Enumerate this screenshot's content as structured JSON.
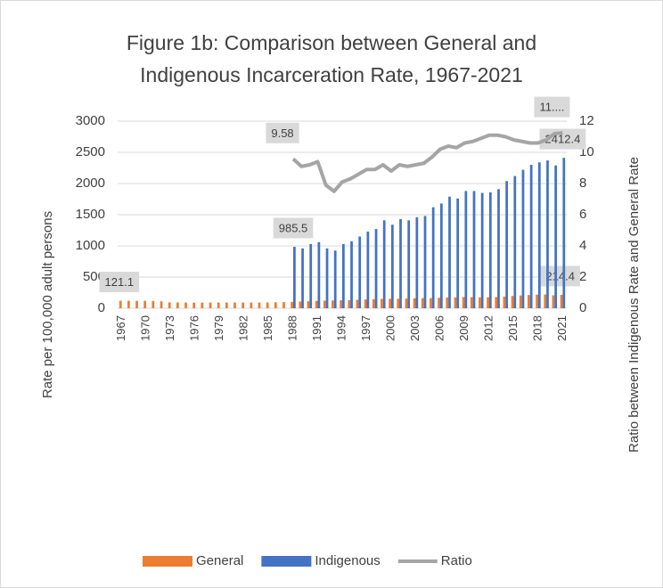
{
  "chart_data": {
    "type": "bar",
    "title": "Figure 1b: Comparison between General and Indigenous Incarceration Rate, 1967-2021",
    "ylabel": "Rate per 100,000 adult persons",
    "y2label": "Ratio between Indigenous Rate and General Rate",
    "categories": [
      "1967",
      null,
      null,
      "1970",
      null,
      null,
      "1973",
      null,
      null,
      "1976",
      null,
      null,
      "1979",
      null,
      null,
      "1982",
      null,
      null,
      "1985",
      null,
      null,
      "1988",
      null,
      null,
      "1991",
      null,
      null,
      "1994",
      null,
      null,
      "1997",
      null,
      null,
      "2000",
      null,
      null,
      "2003",
      null,
      null,
      "2006",
      null,
      null,
      "2009",
      null,
      null,
      "2012",
      null,
      null,
      "2015",
      null,
      null,
      "2018",
      null,
      null,
      "2021"
    ],
    "series": [
      {
        "name": "General",
        "type": "bar",
        "color": "#ed7d31",
        "values": [
          121.1,
          120,
          118,
          119,
          117,
          112,
          95,
          93,
          92,
          90,
          90,
          91,
          92,
          92,
          92,
          92,
          91,
          92,
          93,
          96,
          99,
          102,
          107,
          112,
          118,
          122,
          125,
          127,
          130,
          135,
          140,
          145,
          150,
          152,
          152,
          155,
          160,
          162,
          163,
          168,
          172,
          175,
          180,
          178,
          175,
          175,
          180,
          188,
          197,
          205,
          212,
          218,
          220,
          208,
          214.4
        ],
        "value_labels": [
          "121.1",
          null,
          null,
          null,
          null,
          null,
          null,
          null,
          null,
          null,
          null,
          null,
          null,
          null,
          null,
          null,
          null,
          null,
          null,
          null,
          null,
          null,
          null,
          null,
          null,
          null,
          null,
          null,
          null,
          null,
          null,
          null,
          null,
          null,
          null,
          null,
          null,
          null,
          null,
          null,
          null,
          null,
          null,
          null,
          null,
          null,
          null,
          null,
          null,
          null,
          null,
          null,
          null,
          null,
          "214.4"
        ]
      },
      {
        "name": "Indigenous",
        "type": "bar",
        "color": "#4472c4",
        "values": [
          null,
          null,
          null,
          null,
          null,
          null,
          null,
          null,
          null,
          null,
          null,
          null,
          null,
          null,
          null,
          null,
          null,
          null,
          null,
          null,
          null,
          985.5,
          960,
          1030,
          1060,
          960,
          925,
          1030,
          1075,
          1150,
          1230,
          1270,
          1410,
          1340,
          1430,
          1410,
          1460,
          1480,
          1620,
          1680,
          1790,
          1760,
          1880,
          1880,
          1850,
          1860,
          1910,
          2040,
          2120,
          2220,
          2300,
          2340,
          2370,
          2290,
          2412.4
        ],
        "value_labels": [
          null,
          null,
          null,
          null,
          null,
          null,
          null,
          null,
          null,
          null,
          null,
          null,
          null,
          null,
          null,
          null,
          null,
          null,
          null,
          null,
          null,
          "985.5",
          null,
          null,
          null,
          null,
          null,
          null,
          null,
          null,
          null,
          null,
          null,
          null,
          null,
          null,
          null,
          null,
          null,
          null,
          null,
          null,
          null,
          null,
          null,
          null,
          null,
          null,
          null,
          null,
          null,
          null,
          null,
          null,
          "2412.4"
        ]
      },
      {
        "name": "Ratio",
        "type": "line",
        "axis": "y2",
        "color": "#a5a5a5",
        "values": [
          null,
          null,
          null,
          null,
          null,
          null,
          null,
          null,
          null,
          null,
          null,
          null,
          null,
          null,
          null,
          null,
          null,
          null,
          null,
          null,
          null,
          9.58,
          9.1,
          9.2,
          9.4,
          7.9,
          7.5,
          8.1,
          8.3,
          8.6,
          8.9,
          8.9,
          9.2,
          8.8,
          9.2,
          9.1,
          9.2,
          9.3,
          9.7,
          10.2,
          10.4,
          10.3,
          10.6,
          10.7,
          10.9,
          11.1,
          11.1,
          11.0,
          10.8,
          10.7,
          10.6,
          10.6,
          10.8,
          11.2,
          11.25
        ],
        "value_labels": [
          null,
          null,
          null,
          null,
          null,
          null,
          null,
          null,
          null,
          null,
          null,
          null,
          null,
          null,
          null,
          null,
          null,
          null,
          null,
          null,
          null,
          "9.58",
          null,
          null,
          null,
          null,
          null,
          null,
          null,
          null,
          null,
          null,
          null,
          null,
          null,
          null,
          null,
          null,
          null,
          null,
          null,
          null,
          null,
          null,
          null,
          null,
          null,
          null,
          null,
          null,
          null,
          null,
          null,
          null,
          "11...."
        ]
      }
    ],
    "ylim": [
      0,
      3000
    ],
    "yticks": [
      0,
      500,
      1000,
      1500,
      2000,
      2500,
      3000
    ],
    "y2lim": [
      0,
      12
    ],
    "y2ticks": [
      0,
      2,
      4,
      6,
      8,
      10,
      12
    ],
    "grid": true,
    "legend": "bottom"
  }
}
